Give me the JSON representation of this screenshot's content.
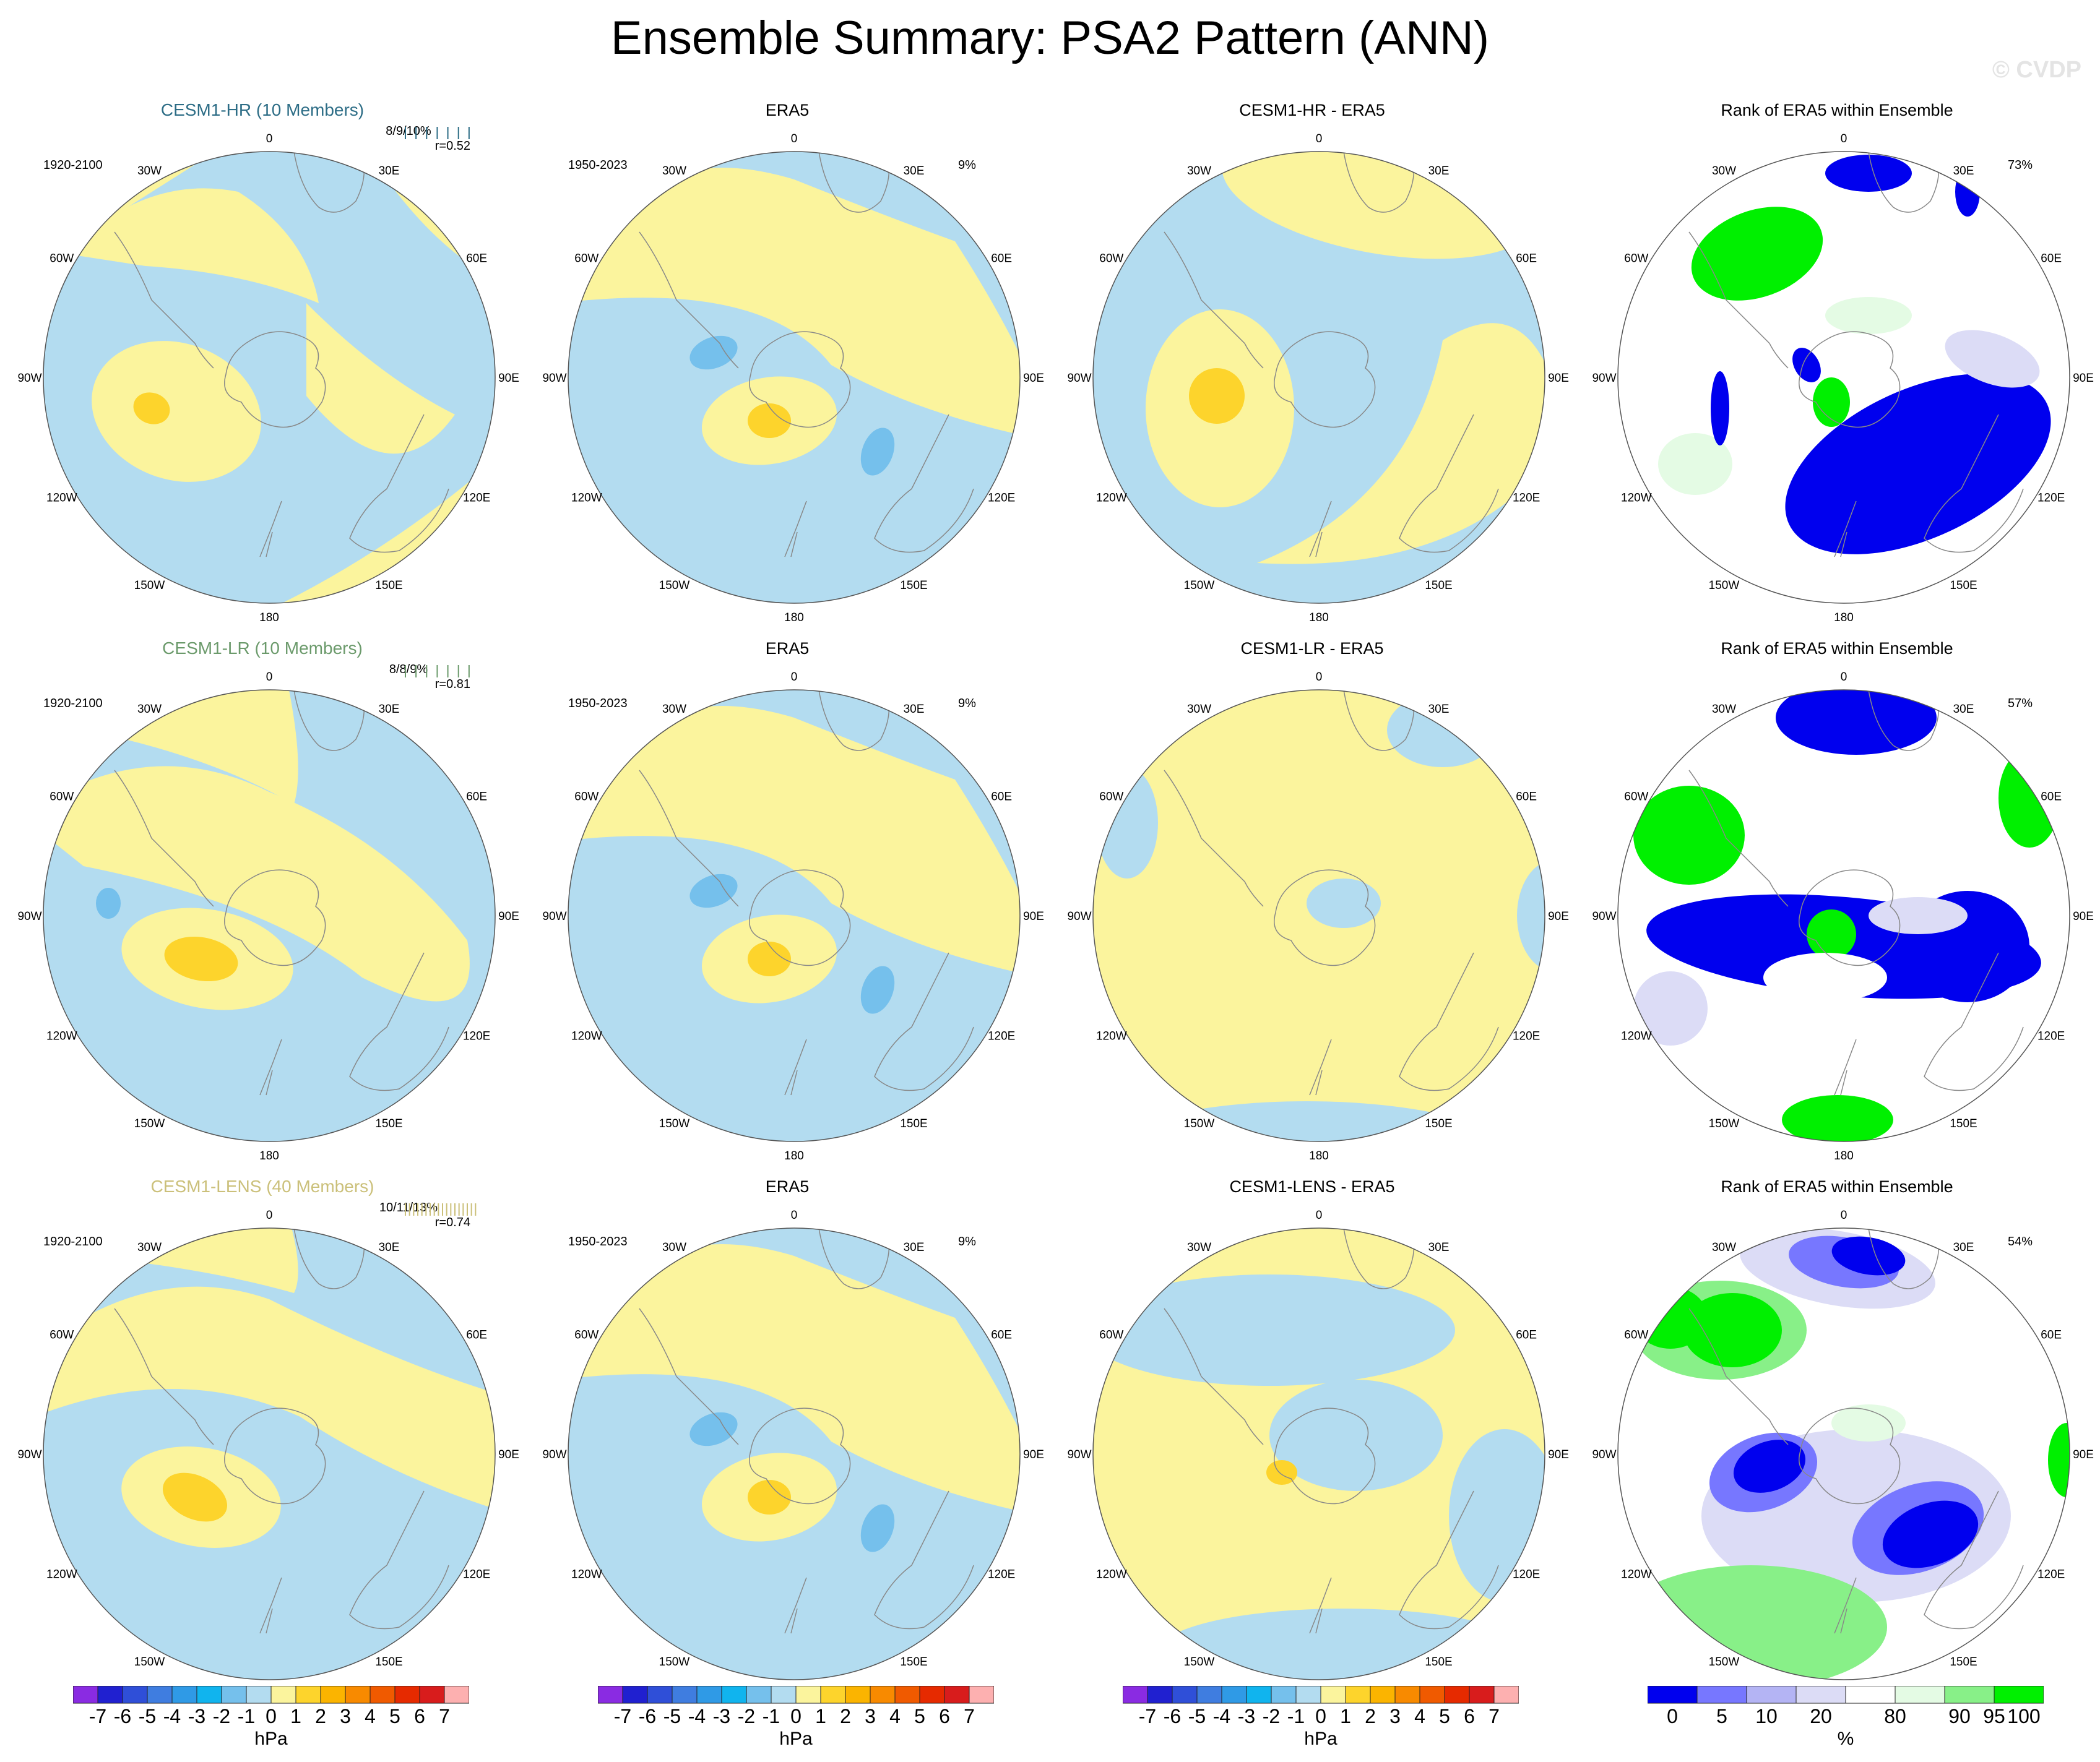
{
  "title": "Ensemble Summary: PSA2 Pattern (ANN)",
  "watermark": "© CVDP",
  "colors": {
    "neg1": "#b3dcf0",
    "neg2": "#75c0ec",
    "pos1": "#fbf49d",
    "pos2": "#fdd42c",
    "rank_dark_blue": "#0000ee",
    "rank_mid_blue": "#7777ff",
    "rank_light_blue": "#dcdcf6",
    "rank_light_green": "#e4fbe4",
    "rank_mid_green": "#88f088",
    "rank_green": "#00f000",
    "land_outline": "#888888",
    "cesm1_hr": "#2d6d86",
    "cesm1_lr": "#6b9a6b",
    "cesm1_lens": "#cbc07a"
  },
  "longitude_labels": [
    "0",
    "30E",
    "60E",
    "90E",
    "120E",
    "150E",
    "180",
    "150W",
    "120W",
    "90W",
    "60W",
    "30W"
  ],
  "rows": [
    {
      "model": {
        "title": "CESM1-HR (10 Members)",
        "period": "1920-2100",
        "stats": "8/9/10%",
        "r": "r=0.52",
        "color_key": "cesm1_hr"
      },
      "obs": {
        "title": "ERA5",
        "period": "1950-2023",
        "pct": "9%"
      },
      "diff": {
        "title": "CESM1-HR - ERA5"
      },
      "rank": {
        "title": "Rank of ERA5 within Ensemble",
        "pct": "73%"
      }
    },
    {
      "model": {
        "title": "CESM1-LR (10 Members)",
        "period": "1920-2100",
        "stats": "8/8/9%",
        "r": "r=0.81",
        "color_key": "cesm1_lr"
      },
      "obs": {
        "title": "ERA5",
        "period": "1950-2023",
        "pct": "9%"
      },
      "diff": {
        "title": "CESM1-LR - ERA5"
      },
      "rank": {
        "title": "Rank of ERA5 within Ensemble",
        "pct": "57%"
      }
    },
    {
      "model": {
        "title": "CESM1-LENS (40 Members)",
        "period": "1920-2100",
        "stats": "10/11/13%",
        "r": "r=0.74",
        "color_key": "cesm1_lens"
      },
      "obs": {
        "title": "ERA5",
        "period": "1950-2023",
        "pct": "9%"
      },
      "diff": {
        "title": "CESM1-LENS - ERA5"
      },
      "rank": {
        "title": "Rank of ERA5 within Ensemble",
        "pct": "54%"
      }
    }
  ],
  "chart_data": [
    {
      "type": "heatmap",
      "name": "PSA2 sea-level-pressure pattern maps",
      "projection": "South polar stereographic",
      "units": "hPa",
      "colorbar_levels": [
        -7,
        -6,
        -5,
        -4,
        -3,
        -2,
        -1,
        0,
        1,
        2,
        3,
        4,
        5,
        6,
        7
      ],
      "colorbar_labels": [
        "-7",
        "-6",
        "-5",
        "-4",
        "-3",
        "-2",
        "-1",
        "0",
        "1",
        "2",
        "3",
        "4",
        "5",
        "6",
        "7"
      ],
      "colorbar_colors": [
        "#8a2be2",
        "#2020d0",
        "#2f4fd8",
        "#3f7de0",
        "#2f9ae6",
        "#10b4ee",
        "#75c0ec",
        "#b3dcf0",
        "#fbf49d",
        "#fdd42c",
        "#fbb400",
        "#f88a00",
        "#f05a00",
        "#e62a00",
        "#d81c1c",
        "#fdb0b0"
      ],
      "panels": [
        "CESM1-HR",
        "ERA5",
        "CESM1-HR - ERA5",
        "CESM1-LR",
        "ERA5",
        "CESM1-LR - ERA5",
        "CESM1-LENS",
        "ERA5",
        "CESM1-LENS - ERA5"
      ]
    },
    {
      "type": "heatmap",
      "name": "Rank of ERA5 within Ensemble",
      "units": "%",
      "colorbar_labels": [
        "0",
        "5",
        "10",
        "20",
        "80",
        "90",
        "95",
        "100"
      ],
      "colorbar_colors": [
        "#0000ee",
        "#7777ff",
        "#b4b4f4",
        "#dcdcf6",
        "#ffffff",
        "#e4fbe4",
        "#88f088",
        "#00f000"
      ],
      "values_pct": [
        73,
        57,
        54
      ]
    }
  ],
  "colorbar": {
    "unit_hpa": "hPa",
    "unit_pct": "%"
  }
}
